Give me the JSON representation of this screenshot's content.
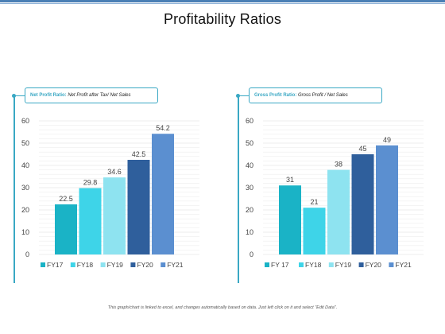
{
  "title": "Profitability Ratios",
  "footer": "This graph/chart is linked to excel, and changes automatically based on data. Just left click on it and select \"Edit Data\".",
  "panels": [
    {
      "label": "Net Profit Ratio:",
      "description": "Net Profit after Tax/ Net Sales"
    },
    {
      "label": "Gross Profit Ratio:",
      "description": "Gross Profit / Net Sales"
    }
  ],
  "colors": {
    "accent": "#3aa8c4",
    "series": [
      "#1ab3c6",
      "#3ed4e8",
      "#8ee3f0",
      "#2f5f9c",
      "#5b8fd0"
    ]
  },
  "chart_data": [
    {
      "type": "bar",
      "title": "",
      "categories": [
        "FY17",
        "FY18",
        "FY19",
        "FY20",
        "FY21"
      ],
      "values": [
        22.5,
        29.8,
        34.6,
        42.5,
        54.2
      ],
      "value_labels": [
        "22.5",
        "29.8",
        "34.6",
        "42.5",
        "54.2"
      ],
      "ylim": [
        0,
        60
      ],
      "yticks": [
        "0",
        "10",
        "20",
        "30",
        "40",
        "50",
        "60"
      ],
      "grid": true,
      "legend": [
        "FY17",
        "FY18",
        "FY19",
        "FY20",
        "FY21"
      ],
      "legend_position": "bottom"
    },
    {
      "type": "bar",
      "title": "",
      "categories": [
        "FY 17",
        "FY18",
        "FY19",
        "FY20",
        "FY21"
      ],
      "values": [
        31,
        21,
        38,
        45,
        49
      ],
      "value_labels": [
        "31",
        "21",
        "38",
        "45",
        "49"
      ],
      "ylim": [
        0,
        60
      ],
      "yticks": [
        "0",
        "10",
        "20",
        "30",
        "40",
        "50",
        "60"
      ],
      "grid": true,
      "legend": [
        "FY 17",
        "FY18",
        "FY19",
        "FY20",
        "FY21"
      ],
      "legend_position": "bottom"
    }
  ]
}
